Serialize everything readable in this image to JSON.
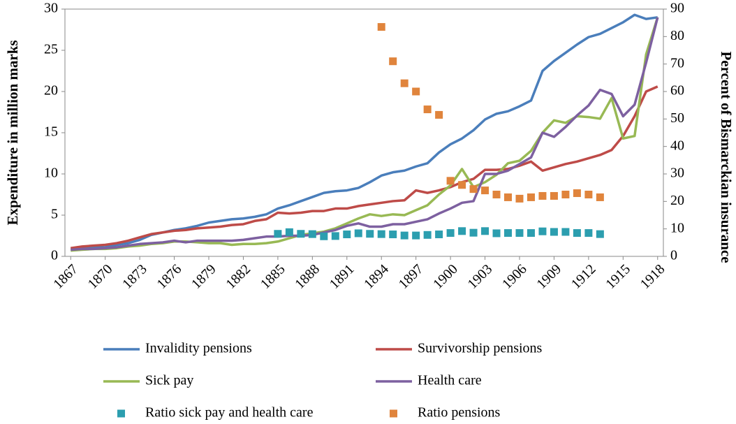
{
  "chart_data": {
    "type": "line",
    "y_label": "Expenditure in million marks",
    "y2_label": "Percent of Bismarckian insurance",
    "x": [
      1867,
      1868,
      1869,
      1870,
      1871,
      1872,
      1873,
      1874,
      1875,
      1876,
      1877,
      1878,
      1879,
      1880,
      1881,
      1882,
      1883,
      1884,
      1885,
      1886,
      1887,
      1888,
      1889,
      1890,
      1891,
      1892,
      1893,
      1894,
      1895,
      1896,
      1897,
      1898,
      1899,
      1900,
      1901,
      1902,
      1903,
      1904,
      1905,
      1906,
      1907,
      1908,
      1909,
      1910,
      1911,
      1912,
      1913,
      1914,
      1915,
      1916,
      1917,
      1918
    ],
    "xlim": [
      1866.5,
      1918.5
    ],
    "xticks": [
      1867,
      1870,
      1873,
      1876,
      1879,
      1882,
      1885,
      1888,
      1891,
      1894,
      1897,
      1900,
      1903,
      1906,
      1909,
      1912,
      1915,
      1918
    ],
    "ylim": [
      0,
      30
    ],
    "yticks": [
      0,
      5,
      10,
      15,
      20,
      25,
      30
    ],
    "y2lim": [
      0,
      90
    ],
    "y2ticks": [
      0,
      10,
      20,
      30,
      40,
      50,
      60,
      70,
      80,
      90
    ],
    "series": [
      {
        "name": "Invalidity pensions",
        "color": "#4a7ebb",
        "type": "line",
        "values": [
          0.9,
          1.0,
          1.1,
          1.1,
          1.4,
          1.6,
          2.0,
          2.6,
          2.9,
          3.2,
          3.4,
          3.7,
          4.1,
          4.3,
          4.5,
          4.6,
          4.8,
          5.1,
          5.8,
          6.2,
          6.7,
          7.2,
          7.7,
          7.9,
          8.0,
          8.3,
          9.0,
          9.8,
          10.2,
          10.4,
          10.9,
          11.3,
          12.6,
          13.6,
          14.3,
          15.3,
          16.6,
          17.3,
          17.6,
          18.2,
          18.9,
          22.5,
          23.7,
          24.7,
          25.7,
          26.6,
          27.0,
          27.7,
          28.4,
          29.3,
          28.8,
          29.0
        ]
      },
      {
        "name": "Survivorship pensions",
        "color": "#be4b48",
        "type": "line",
        "values": [
          1.0,
          1.2,
          1.3,
          1.4,
          1.6,
          1.9,
          2.3,
          2.7,
          2.9,
          3.1,
          3.2,
          3.4,
          3.5,
          3.6,
          3.8,
          3.9,
          4.3,
          4.5,
          5.3,
          5.2,
          5.3,
          5.5,
          5.5,
          5.8,
          5.8,
          6.1,
          6.3,
          6.5,
          6.7,
          6.8,
          8.0,
          7.7,
          8.0,
          8.4,
          9.0,
          9.4,
          10.5,
          10.5,
          10.6,
          11.0,
          11.5,
          10.4,
          10.8,
          11.2,
          11.5,
          11.9,
          12.3,
          12.9,
          14.6,
          17.0,
          20.0,
          20.6
        ]
      },
      {
        "name": "Sick pay",
        "color": "#98b954",
        "type": "line",
        "values": [
          0.7,
          0.8,
          0.9,
          0.9,
          1.0,
          1.2,
          1.3,
          1.5,
          1.6,
          1.8,
          1.8,
          1.7,
          1.6,
          1.6,
          1.4,
          1.5,
          1.5,
          1.6,
          1.8,
          2.2,
          2.6,
          2.8,
          3.0,
          3.4,
          4.0,
          4.6,
          5.1,
          4.9,
          5.1,
          5.0,
          5.6,
          6.2,
          7.5,
          8.6,
          10.6,
          8.4,
          9.0,
          9.9,
          11.3,
          11.6,
          12.8,
          15.0,
          16.5,
          16.2,
          17.0,
          16.9,
          16.7,
          19.2,
          14.3,
          14.6,
          24.5,
          29.0
        ]
      },
      {
        "name": "Health care",
        "color": "#7d60a0",
        "type": "line",
        "values": [
          0.8,
          0.9,
          0.9,
          1.0,
          1.1,
          1.3,
          1.5,
          1.6,
          1.7,
          1.9,
          1.7,
          1.9,
          1.9,
          1.9,
          1.9,
          2.0,
          2.2,
          2.4,
          2.4,
          2.5,
          2.5,
          2.6,
          2.9,
          3.2,
          3.7,
          4.0,
          3.6,
          3.6,
          3.9,
          3.9,
          4.2,
          4.5,
          5.2,
          5.8,
          6.5,
          6.7,
          10.0,
          10.0,
          10.4,
          11.2,
          12.0,
          15.0,
          14.5,
          15.7,
          17.1,
          18.3,
          20.2,
          19.7,
          17.0,
          18.4,
          23.5,
          29.0
        ]
      },
      {
        "name": "Ratio sick pay and health care",
        "color": "#2c9eaf",
        "type": "scatter",
        "axis": "y2",
        "values": [
          null,
          null,
          null,
          null,
          null,
          null,
          null,
          null,
          null,
          null,
          null,
          null,
          null,
          null,
          null,
          null,
          null,
          null,
          8.2,
          8.8,
          8.2,
          8.1,
          7.3,
          7.4,
          8.0,
          8.4,
          8.2,
          8.1,
          8.0,
          7.6,
          7.6,
          7.8,
          8.0,
          8.5,
          9.2,
          8.6,
          9.2,
          8.4,
          8.5,
          8.5,
          8.5,
          9.1,
          8.9,
          8.9,
          8.5,
          8.5,
          8.1,
          null,
          null,
          null,
          null,
          null
        ]
      },
      {
        "name": "Ratio pensions",
        "color": "#e0843c",
        "type": "scatter",
        "axis": "y2",
        "values": [
          null,
          null,
          null,
          null,
          null,
          null,
          null,
          null,
          null,
          null,
          null,
          null,
          null,
          null,
          null,
          null,
          null,
          null,
          null,
          null,
          null,
          null,
          null,
          null,
          null,
          null,
          null,
          83.5,
          71,
          63,
          60,
          53.5,
          51.5,
          27.5,
          26,
          24.5,
          24,
          22.5,
          21.5,
          21,
          21.5,
          22,
          22,
          22.5,
          23,
          22.5,
          21.5,
          null,
          null,
          null,
          null,
          null
        ]
      }
    ]
  }
}
